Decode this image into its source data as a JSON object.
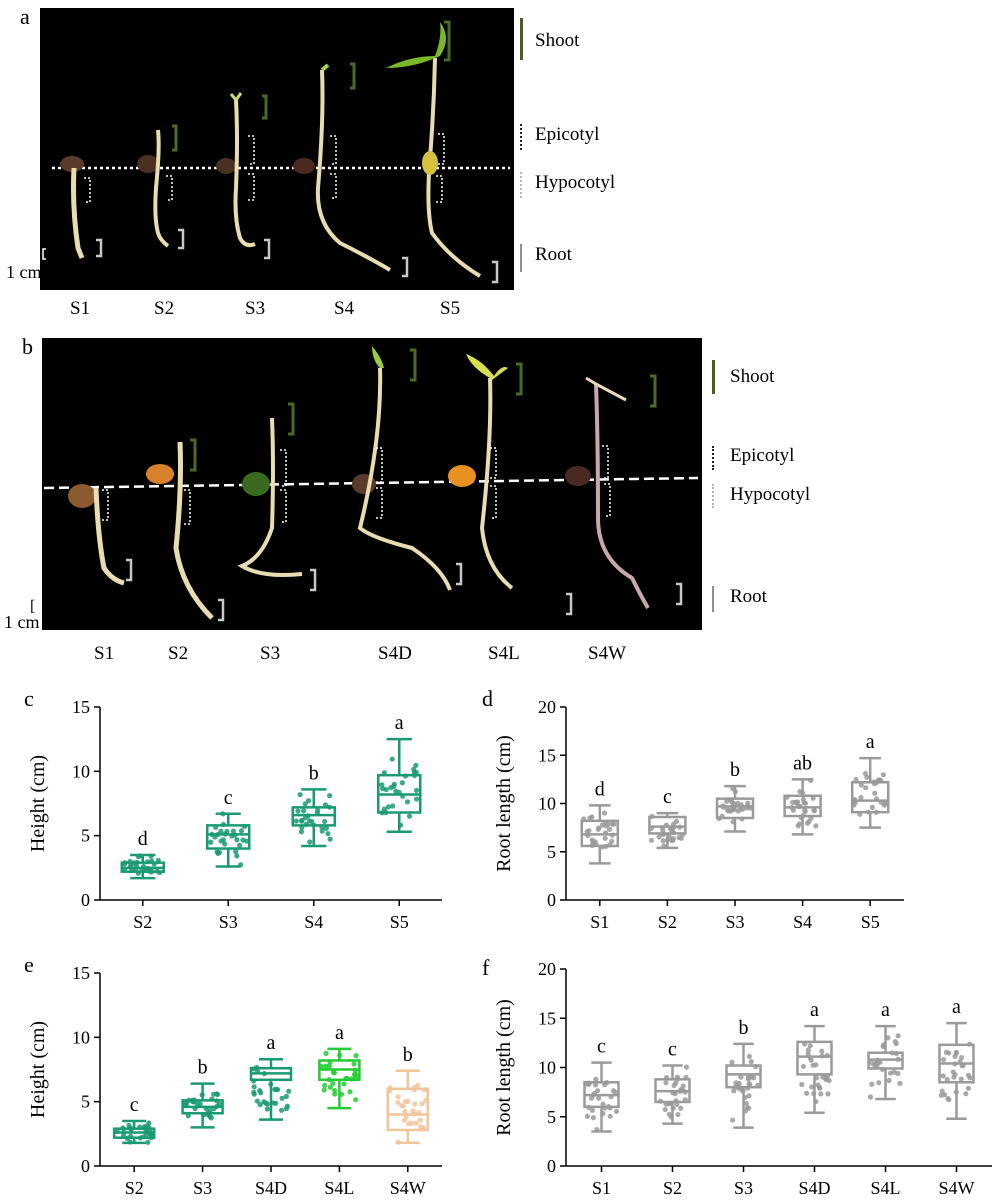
{
  "panels": {
    "a": {
      "letter": "a",
      "stages": [
        "S1",
        "S2",
        "S3",
        "S4",
        "S5"
      ],
      "legend": {
        "shoot": "Shoot",
        "epicotyl": "Epicotyl",
        "hypocotyl": "Hypocotyl",
        "root": "Root"
      },
      "scale": "1 cm",
      "colors": {
        "shoot": "#4a5e20",
        "epicotyl": "#222222",
        "hypocotyl": "#b5b5b5",
        "root": "#8f8f8f"
      }
    },
    "b": {
      "letter": "b",
      "stages": [
        "S1",
        "S2",
        "S3",
        "S4D",
        "S4L",
        "S4W"
      ],
      "legend": {
        "shoot": "Shoot",
        "epicotyl": "Epicotyl",
        "hypocotyl": "Hypocotyl",
        "root": "Root"
      },
      "scale": "1 cm"
    },
    "c": {
      "letter": "c"
    },
    "d": {
      "letter": "d"
    },
    "e": {
      "letter": "e"
    },
    "f": {
      "letter": "f"
    }
  },
  "chart_data": [
    {
      "panel": "c",
      "type": "box",
      "ylabel": "Height (cm)",
      "ylim": [
        0,
        15
      ],
      "yticks": [
        0,
        5,
        10,
        15
      ],
      "categories": [
        "S2",
        "S3",
        "S4",
        "S5"
      ],
      "boxes": [
        {
          "min": 1.7,
          "q1": 2.2,
          "median": 2.5,
          "q3": 2.9,
          "max": 3.5,
          "sig": "d",
          "color": "#1a9a72"
        },
        {
          "min": 2.6,
          "q1": 4.0,
          "median": 5.1,
          "q3": 5.8,
          "max": 6.7,
          "sig": "c",
          "color": "#1a9a72"
        },
        {
          "min": 4.2,
          "q1": 5.8,
          "median": 6.6,
          "q3": 7.2,
          "max": 8.6,
          "sig": "b",
          "color": "#1a9a72"
        },
        {
          "min": 5.3,
          "q1": 6.8,
          "median": 8.2,
          "q3": 9.7,
          "max": 12.5,
          "sig": "a",
          "color": "#1a9a72"
        }
      ]
    },
    {
      "panel": "d",
      "type": "box",
      "ylabel": "Root length (cm)",
      "ylim": [
        0,
        20
      ],
      "yticks": [
        0,
        5,
        10,
        15,
        20
      ],
      "categories": [
        "S1",
        "S2",
        "S3",
        "S4",
        "S5"
      ],
      "boxes": [
        {
          "min": 3.8,
          "q1": 5.6,
          "median": 6.8,
          "q3": 8.2,
          "max": 9.8,
          "sig": "d",
          "color": "#9a9a9a"
        },
        {
          "min": 5.4,
          "q1": 6.9,
          "median": 7.6,
          "q3": 8.6,
          "max": 9.0,
          "sig": "c",
          "color": "#9a9a9a"
        },
        {
          "min": 7.1,
          "q1": 8.5,
          "median": 9.7,
          "q3": 10.5,
          "max": 11.8,
          "sig": "b",
          "color": "#9a9a9a"
        },
        {
          "min": 6.8,
          "q1": 8.7,
          "median": 9.6,
          "q3": 10.8,
          "max": 12.5,
          "sig": "ab",
          "color": "#9a9a9a"
        },
        {
          "min": 7.5,
          "q1": 9.1,
          "median": 10.3,
          "q3": 12.2,
          "max": 14.7,
          "sig": "a",
          "color": "#9a9a9a"
        }
      ]
    },
    {
      "panel": "e",
      "type": "box",
      "ylabel": "Height (cm)",
      "ylim": [
        0,
        15
      ],
      "yticks": [
        0,
        5,
        10,
        15
      ],
      "categories": [
        "S2",
        "S3",
        "S4D",
        "S4L",
        "S4W"
      ],
      "boxes": [
        {
          "min": 1.8,
          "q1": 2.2,
          "median": 2.6,
          "q3": 2.9,
          "max": 3.5,
          "sig": "c",
          "color": "#1a9a72"
        },
        {
          "min": 3.0,
          "q1": 4.1,
          "median": 4.6,
          "q3": 5.1,
          "max": 6.4,
          "sig": "b",
          "color": "#1a9a72"
        },
        {
          "min": 3.6,
          "q1": 6.7,
          "median": 7.2,
          "q3": 7.6,
          "max": 8.3,
          "sig": "a",
          "color": "#1a9a72"
        },
        {
          "min": 4.5,
          "q1": 6.7,
          "median": 7.5,
          "q3": 8.2,
          "max": 9.1,
          "sig": "a",
          "color": "#22cc33"
        },
        {
          "min": 1.8,
          "q1": 2.8,
          "median": 4.0,
          "q3": 6.0,
          "max": 7.4,
          "sig": "b",
          "color": "#f2c49a"
        }
      ]
    },
    {
      "panel": "f",
      "type": "box",
      "ylabel": "Root length (cm)",
      "ylim": [
        0,
        20
      ],
      "yticks": [
        0,
        5,
        10,
        15,
        20
      ],
      "categories": [
        "S1",
        "S2",
        "S3",
        "S4D",
        "S4L",
        "S4W"
      ],
      "boxes": [
        {
          "min": 3.5,
          "q1": 6.0,
          "median": 7.2,
          "q3": 8.5,
          "max": 10.5,
          "sig": "c",
          "color": "#9a9a9a"
        },
        {
          "min": 4.3,
          "q1": 6.5,
          "median": 7.6,
          "q3": 8.8,
          "max": 10.2,
          "sig": "c",
          "color": "#9a9a9a"
        },
        {
          "min": 3.9,
          "q1": 8.0,
          "median": 9.3,
          "q3": 10.2,
          "max": 12.4,
          "sig": "b",
          "color": "#9a9a9a"
        },
        {
          "min": 5.4,
          "q1": 9.3,
          "median": 11.1,
          "q3": 12.6,
          "max": 14.2,
          "sig": "a",
          "color": "#9a9a9a"
        },
        {
          "min": 6.8,
          "q1": 9.9,
          "median": 10.8,
          "q3": 11.5,
          "max": 14.2,
          "sig": "a",
          "color": "#9a9a9a"
        },
        {
          "min": 4.8,
          "q1": 8.5,
          "median": 10.4,
          "q3": 12.3,
          "max": 14.5,
          "sig": "a",
          "color": "#9a9a9a"
        }
      ]
    }
  ]
}
